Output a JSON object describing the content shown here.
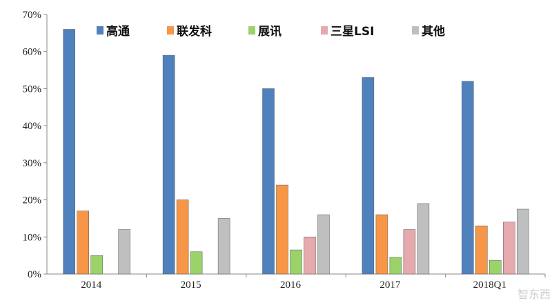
{
  "chart_data": {
    "type": "bar",
    "categories": [
      "2014",
      "2015",
      "2016",
      "2017",
      "2018Q1"
    ],
    "series": [
      {
        "name": "高通",
        "color": "#4f81bd",
        "values": [
          66,
          59,
          50,
          53,
          52
        ]
      },
      {
        "name": "联发科",
        "color": "#f79646",
        "values": [
          17,
          20,
          24,
          16,
          13
        ]
      },
      {
        "name": "展讯",
        "color": "#9bd36a",
        "values": [
          5,
          6,
          6.5,
          4.5,
          3.7
        ]
      },
      {
        "name": "三星LSI",
        "color": "#e6a9ad",
        "values": [
          null,
          null,
          10,
          12,
          14
        ]
      },
      {
        "name": "其他",
        "color": "#bfbfbf",
        "values": [
          12,
          15,
          16,
          19,
          17.5
        ]
      }
    ],
    "ylim": [
      0,
      70
    ],
    "yticks": [
      "0%",
      "10%",
      "20%",
      "30%",
      "40%",
      "50%",
      "60%",
      "70%"
    ],
    "legend": "top",
    "grid": false
  },
  "watermark": "智东西"
}
